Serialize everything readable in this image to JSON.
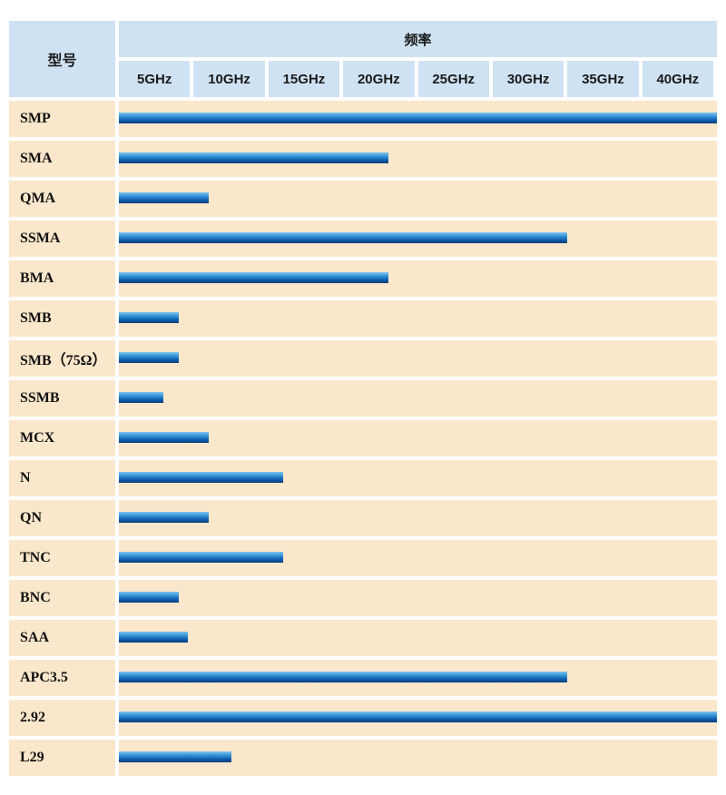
{
  "header": {
    "model_label": "型号",
    "frequency_label": "频率"
  },
  "chart_data": {
    "type": "bar",
    "orientation": "horizontal",
    "x_tick_labels": [
      "5GHz",
      "10GHz",
      "15GHz",
      "20GHz",
      "25GHz",
      "30GHz",
      "35GHz",
      "40GHz"
    ],
    "xlim": [
      0,
      40
    ],
    "x_unit": "GHz",
    "categories": [
      "SMP",
      "SMA",
      "QMA",
      "SSMA",
      "BMA",
      "SMB",
      "SMB（75Ω）",
      "SSMB",
      "MCX",
      "N",
      "QN",
      "TNC",
      "BNC",
      "SAA",
      "APC3.5",
      "2.92",
      "L29"
    ],
    "values": [
      40,
      18,
      6,
      30,
      18,
      4,
      4,
      3,
      6,
      11,
      6,
      11,
      4,
      4.6,
      30,
      40,
      7.5
    ]
  },
  "colors": {
    "header_bg": "#cfe2f3",
    "row_bg": "#fbe7cc",
    "bar_dark": "#0b3d7a",
    "bar_light": "#7fc4ef"
  }
}
